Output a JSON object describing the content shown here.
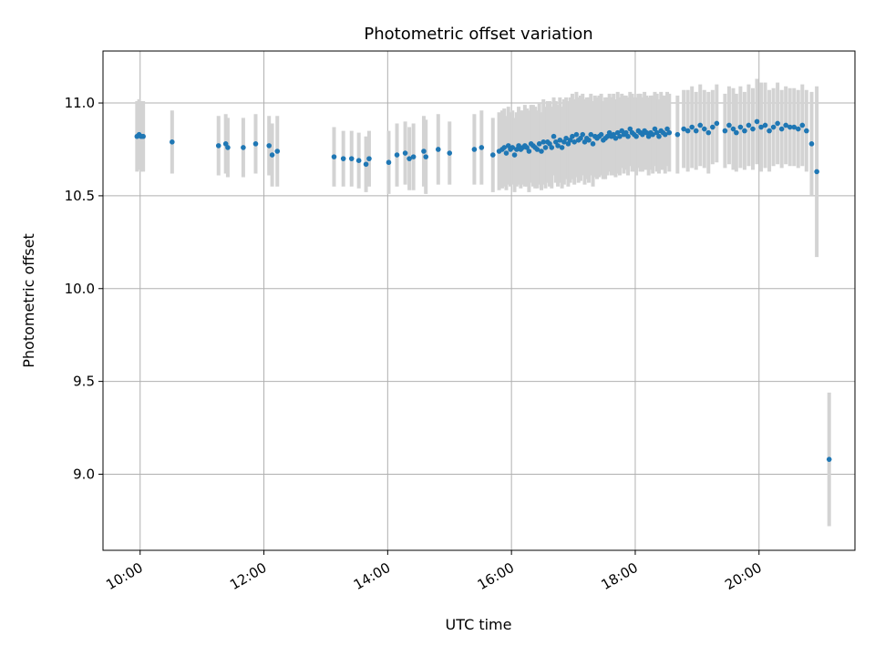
{
  "chart_data": {
    "type": "scatter",
    "title": "Photometric offset variation",
    "xlabel": "UTC time",
    "ylabel": "Photometric offset",
    "x_tick_labels": [
      "10:00",
      "12:00",
      "14:00",
      "16:00",
      "18:00",
      "20:00"
    ],
    "x_ticks": [
      "10:00",
      "12:00",
      "14:00",
      "16:00",
      "18:00",
      "20:00"
    ],
    "y_ticks": [
      9.0,
      9.5,
      10.0,
      10.5,
      11.0
    ],
    "y_tick_labels": [
      "9.0",
      "9.5",
      "10.0",
      "10.5",
      "11.0"
    ],
    "xlim": [
      "09:24",
      "21:33"
    ],
    "ylim": [
      8.59,
      11.28
    ],
    "grid": true,
    "colors": {
      "point": "#1f77b4",
      "errorbar": "#d3d3d3"
    },
    "series": [
      {
        "x": [
          "09:57",
          "09:59",
          "10:01",
          "10:03",
          "10:31",
          "11:16",
          "11:23",
          "11:25",
          "11:40",
          "11:52",
          "12:05",
          "12:08",
          "12:13",
          "13:08",
          "13:17",
          "13:25",
          "13:32",
          "13:39",
          "13:42",
          "14:01",
          "14:09",
          "14:17",
          "14:21",
          "14:25",
          "14:35",
          "14:37",
          "14:49",
          "15:00",
          "15:24",
          "15:31",
          "15:42",
          "15:48",
          "15:51",
          "15:53",
          "15:55",
          "15:57",
          "15:59",
          "16:01",
          "16:03",
          "16:05",
          "16:07",
          "16:09",
          "16:11",
          "16:13",
          "16:15",
          "16:17",
          "16:19",
          "16:21",
          "16:23",
          "16:25",
          "16:27",
          "16:29",
          "16:31",
          "16:33",
          "16:35",
          "16:37",
          "16:39",
          "16:41",
          "16:43",
          "16:45",
          "16:47",
          "16:49",
          "16:51",
          "16:53",
          "16:55",
          "16:57",
          "16:59",
          "17:01",
          "17:03",
          "17:05",
          "17:07",
          "17:09",
          "17:11",
          "17:13",
          "17:15",
          "17:17",
          "17:19",
          "17:21",
          "17:23",
          "17:25",
          "17:27",
          "17:29",
          "17:31",
          "17:33",
          "17:35",
          "17:37",
          "17:39",
          "17:41",
          "17:43",
          "17:45",
          "17:47",
          "17:49",
          "17:51",
          "17:53",
          "17:55",
          "17:57",
          "17:59",
          "18:01",
          "18:03",
          "18:05",
          "18:07",
          "18:09",
          "18:11",
          "18:13",
          "18:15",
          "18:17",
          "18:19",
          "18:21",
          "18:23",
          "18:25",
          "18:27",
          "18:29",
          "18:31",
          "18:33",
          "18:41",
          "18:47",
          "18:51",
          "18:55",
          "18:59",
          "19:03",
          "19:07",
          "19:11",
          "19:15",
          "19:19",
          "19:27",
          "19:31",
          "19:35",
          "19:38",
          "19:42",
          "19:46",
          "19:50",
          "19:54",
          "19:58",
          "20:02",
          "20:06",
          "20:10",
          "20:14",
          "20:18",
          "20:22",
          "20:26",
          "20:30",
          "20:34",
          "20:38",
          "20:42",
          "20:46",
          "20:51",
          "20:56",
          "21:08"
        ],
        "y": [
          10.82,
          10.83,
          10.82,
          10.82,
          10.79,
          10.77,
          10.78,
          10.76,
          10.76,
          10.78,
          10.77,
          10.72,
          10.74,
          10.71,
          10.7,
          10.7,
          10.69,
          10.67,
          10.7,
          10.68,
          10.72,
          10.73,
          10.7,
          10.71,
          10.74,
          10.71,
          10.75,
          10.73,
          10.75,
          10.76,
          10.72,
          10.74,
          10.75,
          10.76,
          10.73,
          10.77,
          10.75,
          10.76,
          10.72,
          10.75,
          10.77,
          10.75,
          10.76,
          10.77,
          10.76,
          10.74,
          10.78,
          10.77,
          10.76,
          10.75,
          10.78,
          10.74,
          10.79,
          10.76,
          10.79,
          10.78,
          10.76,
          10.82,
          10.79,
          10.77,
          10.8,
          10.76,
          10.79,
          10.81,
          10.78,
          10.8,
          10.82,
          10.79,
          10.83,
          10.8,
          10.81,
          10.83,
          10.79,
          10.81,
          10.8,
          10.83,
          10.78,
          10.82,
          10.81,
          10.82,
          10.83,
          10.8,
          10.81,
          10.82,
          10.84,
          10.82,
          10.83,
          10.81,
          10.84,
          10.82,
          10.85,
          10.83,
          10.84,
          10.82,
          10.86,
          10.84,
          10.83,
          10.82,
          10.85,
          10.84,
          10.83,
          10.85,
          10.84,
          10.82,
          10.84,
          10.83,
          10.86,
          10.84,
          10.82,
          10.85,
          10.84,
          10.83,
          10.86,
          10.84,
          10.83,
          10.86,
          10.85,
          10.87,
          10.85,
          10.88,
          10.86,
          10.84,
          10.87,
          10.89,
          10.85,
          10.88,
          10.86,
          10.84,
          10.87,
          10.85,
          10.88,
          10.86,
          10.9,
          10.87,
          10.88,
          10.85,
          10.87,
          10.89,
          10.86,
          10.88,
          10.87,
          10.87,
          10.86,
          10.88,
          10.85,
          10.78,
          10.63,
          9.08
        ],
        "err": [
          0.19,
          0.19,
          0.19,
          0.19,
          0.17,
          0.16,
          0.16,
          0.16,
          0.16,
          0.16,
          0.16,
          0.17,
          0.19,
          0.16,
          0.15,
          0.15,
          0.15,
          0.15,
          0.15,
          0.17,
          0.17,
          0.17,
          0.17,
          0.18,
          0.19,
          0.2,
          0.19,
          0.17,
          0.19,
          0.2,
          0.2,
          0.21,
          0.21,
          0.21,
          0.2,
          0.21,
          0.2,
          0.2,
          0.2,
          0.2,
          0.21,
          0.21,
          0.2,
          0.22,
          0.21,
          0.22,
          0.21,
          0.22,
          0.22,
          0.21,
          0.22,
          0.21,
          0.23,
          0.22,
          0.22,
          0.23,
          0.22,
          0.21,
          0.22,
          0.22,
          0.23,
          0.22,
          0.23,
          0.22,
          0.23,
          0.23,
          0.23,
          0.23,
          0.23,
          0.23,
          0.23,
          0.22,
          0.23,
          0.22,
          0.23,
          0.22,
          0.23,
          0.22,
          0.22,
          0.22,
          0.22,
          0.21,
          0.22,
          0.21,
          0.21,
          0.21,
          0.22,
          0.21,
          0.22,
          0.21,
          0.2,
          0.21,
          0.2,
          0.21,
          0.2,
          0.21,
          0.2,
          0.21,
          0.2,
          0.21,
          0.2,
          0.21,
          0.2,
          0.21,
          0.2,
          0.21,
          0.2,
          0.21,
          0.2,
          0.21,
          0.2,
          0.21,
          0.2,
          0.21,
          0.21,
          0.21,
          0.22,
          0.22,
          0.21,
          0.22,
          0.21,
          0.22,
          0.2,
          0.21,
          0.2,
          0.21,
          0.22,
          0.21,
          0.22,
          0.21,
          0.22,
          0.22,
          0.23,
          0.24,
          0.23,
          0.22,
          0.21,
          0.22,
          0.21,
          0.21,
          0.21,
          0.21,
          0.21,
          0.22,
          0.22,
          0.28,
          0.46,
          0.36
        ]
      }
    ]
  }
}
